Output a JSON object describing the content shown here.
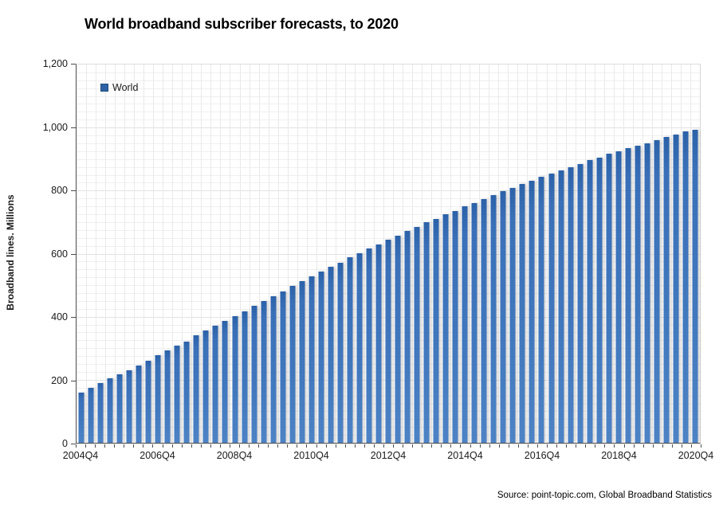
{
  "chart_data": {
    "type": "bar",
    "title": "World broadband subscriber forecasts, to 2020",
    "ylabel": "Broadband lines. Millions",
    "xlabel": "",
    "source": "Source: point-topic.com, Global Broadband Statistics",
    "legend_position": "top-left-inside",
    "grid": "fine-mesh-on",
    "ylim": [
      0,
      1200
    ],
    "ytick_step": 200,
    "y_minor_step": 25,
    "ytick_labels": [
      "0",
      "200",
      "400",
      "600",
      "800",
      "1,000",
      "1,200"
    ],
    "xtick_label_every": 8,
    "categories": [
      "2004Q4",
      "2005Q1",
      "2005Q2",
      "2005Q3",
      "2005Q4",
      "2006Q1",
      "2006Q2",
      "2006Q3",
      "2006Q4",
      "2007Q1",
      "2007Q2",
      "2007Q3",
      "2007Q4",
      "2008Q1",
      "2008Q2",
      "2008Q3",
      "2008Q4",
      "2009Q1",
      "2009Q2",
      "2009Q3",
      "2009Q4",
      "2010Q1",
      "2010Q2",
      "2010Q3",
      "2010Q4",
      "2011Q1",
      "2011Q2",
      "2011Q3",
      "2011Q4",
      "2012Q1",
      "2012Q2",
      "2012Q3",
      "2012Q4",
      "2013Q1",
      "2013Q2",
      "2013Q3",
      "2013Q4",
      "2014Q1",
      "2014Q2",
      "2014Q3",
      "2014Q4",
      "2015Q1",
      "2015Q2",
      "2015Q3",
      "2015Q4",
      "2016Q1",
      "2016Q2",
      "2016Q3",
      "2016Q4",
      "2017Q1",
      "2017Q2",
      "2017Q3",
      "2017Q4",
      "2018Q1",
      "2018Q2",
      "2018Q3",
      "2018Q4",
      "2019Q1",
      "2019Q2",
      "2019Q3",
      "2019Q4",
      "2020Q1",
      "2020Q2",
      "2020Q3",
      "2020Q4"
    ],
    "series": [
      {
        "name": "World",
        "color": "#3A70B8",
        "values": [
          160,
          175,
          190,
          205,
          218,
          230,
          245,
          261,
          278,
          292,
          307,
          322,
          340,
          355,
          372,
          387,
          401,
          418,
          435,
          450,
          466,
          481,
          497,
          513,
          528,
          542,
          558,
          572,
          588,
          601,
          616,
          630,
          645,
          658,
          672,
          685,
          700,
          710,
          726,
          736,
          751,
          761,
          773,
          785,
          798,
          809,
          821,
          831,
          843,
          855,
          864,
          873,
          884,
          896,
          905,
          916,
          925,
          934,
          943,
          951,
          959,
          969,
          977,
          987,
          993
        ]
      }
    ]
  }
}
